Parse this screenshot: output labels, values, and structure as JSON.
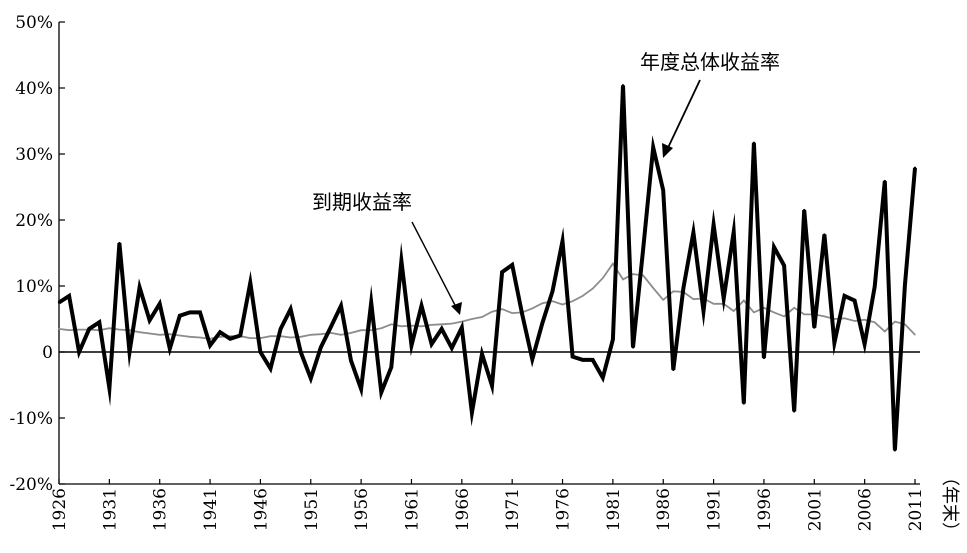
{
  "chart_data": {
    "type": "line",
    "title": "",
    "xlabel": "（年末）",
    "ylabel": "",
    "xlim": [
      1926,
      2011
    ],
    "ylim": [
      -20,
      50
    ],
    "y_ticks": [
      {
        "value": 50,
        "label": "50%"
      },
      {
        "value": 40,
        "label": "40%"
      },
      {
        "value": 30,
        "label": "30%"
      },
      {
        "value": 20,
        "label": "20%"
      },
      {
        "value": 10,
        "label": "10%"
      },
      {
        "value": 0,
        "label": "0"
      },
      {
        "value": -10,
        "label": "-10%"
      },
      {
        "value": -20,
        "label": "-20%"
      }
    ],
    "x_ticks": [
      1926,
      1931,
      1936,
      1941,
      1946,
      1951,
      1956,
      1961,
      1966,
      1971,
      1976,
      1981,
      1986,
      1991,
      1996,
      2001,
      2006,
      2011
    ],
    "grid": false,
    "annotations": [
      {
        "text": "年度总体收益率",
        "series": "total_return",
        "points_to_year": 1985
      },
      {
        "text": "到期收益率",
        "series": "yield_to_maturity",
        "points_to_year": 1966
      }
    ],
    "series": [
      {
        "key": "total_return",
        "color": "#000000",
        "x": [
          1926,
          1927,
          1928,
          1929,
          1930,
          1931,
          1932,
          1933,
          1934,
          1935,
          1936,
          1937,
          1938,
          1939,
          1940,
          1941,
          1942,
          1943,
          1944,
          1945,
          1946,
          1947,
          1948,
          1949,
          1950,
          1951,
          1952,
          1953,
          1954,
          1955,
          1956,
          1957,
          1958,
          1959,
          1960,
          1961,
          1962,
          1963,
          1964,
          1965,
          1966,
          1967,
          1968,
          1969,
          1970,
          1971,
          1972,
          1973,
          1974,
          1975,
          1976,
          1977,
          1978,
          1979,
          1980,
          1981,
          1982,
          1983,
          1984,
          1985,
          1986,
          1987,
          1988,
          1989,
          1990,
          1991,
          1992,
          1993,
          1994,
          1995,
          1996,
          1997,
          1998,
          1999,
          2000,
          2001,
          2002,
          2003,
          2004,
          2005,
          2006,
          2007,
          2008,
          2009,
          2010,
          2011
        ],
        "values": [
          7.5,
          8.5,
          0,
          3.5,
          4.5,
          -5.5,
          16.5,
          0,
          9.8,
          4.8,
          7.3,
          0.5,
          5.5,
          6,
          6,
          1,
          3,
          2,
          2.5,
          10.5,
          0,
          -2.5,
          3.5,
          6.5,
          0,
          -4,
          0.7,
          3.8,
          7,
          -1.3,
          -5.6,
          7.5,
          -6.1,
          -2.3,
          13.8,
          1,
          7,
          1.2,
          3.5,
          0.6,
          3.7,
          -9.2,
          -0.3,
          -5.1,
          12.1,
          13.2,
          5.7,
          -1.1,
          4.4,
          9.2,
          16.8,
          -0.7,
          -1.2,
          -1.2,
          -3.9,
          1.9,
          40.4,
          0.7,
          15.5,
          31,
          24.5,
          -2.7,
          9.7,
          18.1,
          6.2,
          19.3,
          8.1,
          18.2,
          -7.8,
          31.7,
          -0.9,
          15.9,
          13.1,
          -9,
          21.5,
          3.7,
          17.8,
          1.4,
          8.5,
          7.8,
          1.2,
          9.9,
          25.9,
          -14.9,
          10.1,
          27.9
        ]
      },
      {
        "key": "yield_to_maturity",
        "color": "#8c8c8c",
        "x": [
          1926,
          1927,
          1928,
          1929,
          1930,
          1931,
          1932,
          1933,
          1934,
          1935,
          1936,
          1937,
          1938,
          1939,
          1940,
          1941,
          1942,
          1943,
          1944,
          1945,
          1946,
          1947,
          1948,
          1949,
          1950,
          1951,
          1952,
          1953,
          1954,
          1955,
          1956,
          1957,
          1958,
          1959,
          1960,
          1961,
          1962,
          1963,
          1964,
          1965,
          1966,
          1967,
          1968,
          1969,
          1970,
          1971,
          1972,
          1973,
          1974,
          1975,
          1976,
          1977,
          1978,
          1979,
          1980,
          1981,
          1982,
          1983,
          1984,
          1985,
          1986,
          1987,
          1988,
          1989,
          1990,
          1991,
          1992,
          1993,
          1994,
          1995,
          1996,
          1997,
          1998,
          1999,
          2000,
          2001,
          2002,
          2003,
          2004,
          2005,
          2006,
          2007,
          2008,
          2009,
          2010,
          2011
        ],
        "values": [
          3.5,
          3.3,
          3.4,
          3.4,
          3.3,
          3.6,
          3.4,
          3.3,
          3,
          2.8,
          2.6,
          2.7,
          2.5,
          2.3,
          2.2,
          2,
          2.3,
          2.4,
          2.4,
          2.1,
          2.1,
          2.4,
          2.4,
          2.2,
          2.3,
          2.6,
          2.7,
          2.9,
          2.6,
          2.9,
          3.3,
          3.3,
          3.6,
          4.2,
          3.9,
          4,
          3.9,
          4.1,
          4.2,
          4.3,
          4.6,
          5,
          5.3,
          6.1,
          6.5,
          5.9,
          6,
          6.6,
          7.4,
          7.7,
          7.2,
          7.7,
          8.5,
          9.6,
          11.2,
          13.4,
          11,
          11.8,
          11.6,
          9.7,
          7.9,
          9.2,
          9.1,
          8,
          8.1,
          7.3,
          7.3,
          6.2,
          7.8,
          6,
          6.7,
          6.0,
          5.4,
          6.7,
          5.7,
          5.7,
          5.4,
          5.0,
          5.1,
          4.7,
          4.9,
          4.5,
          3.1,
          4.6,
          4.2,
          2.6
        ]
      }
    ]
  }
}
